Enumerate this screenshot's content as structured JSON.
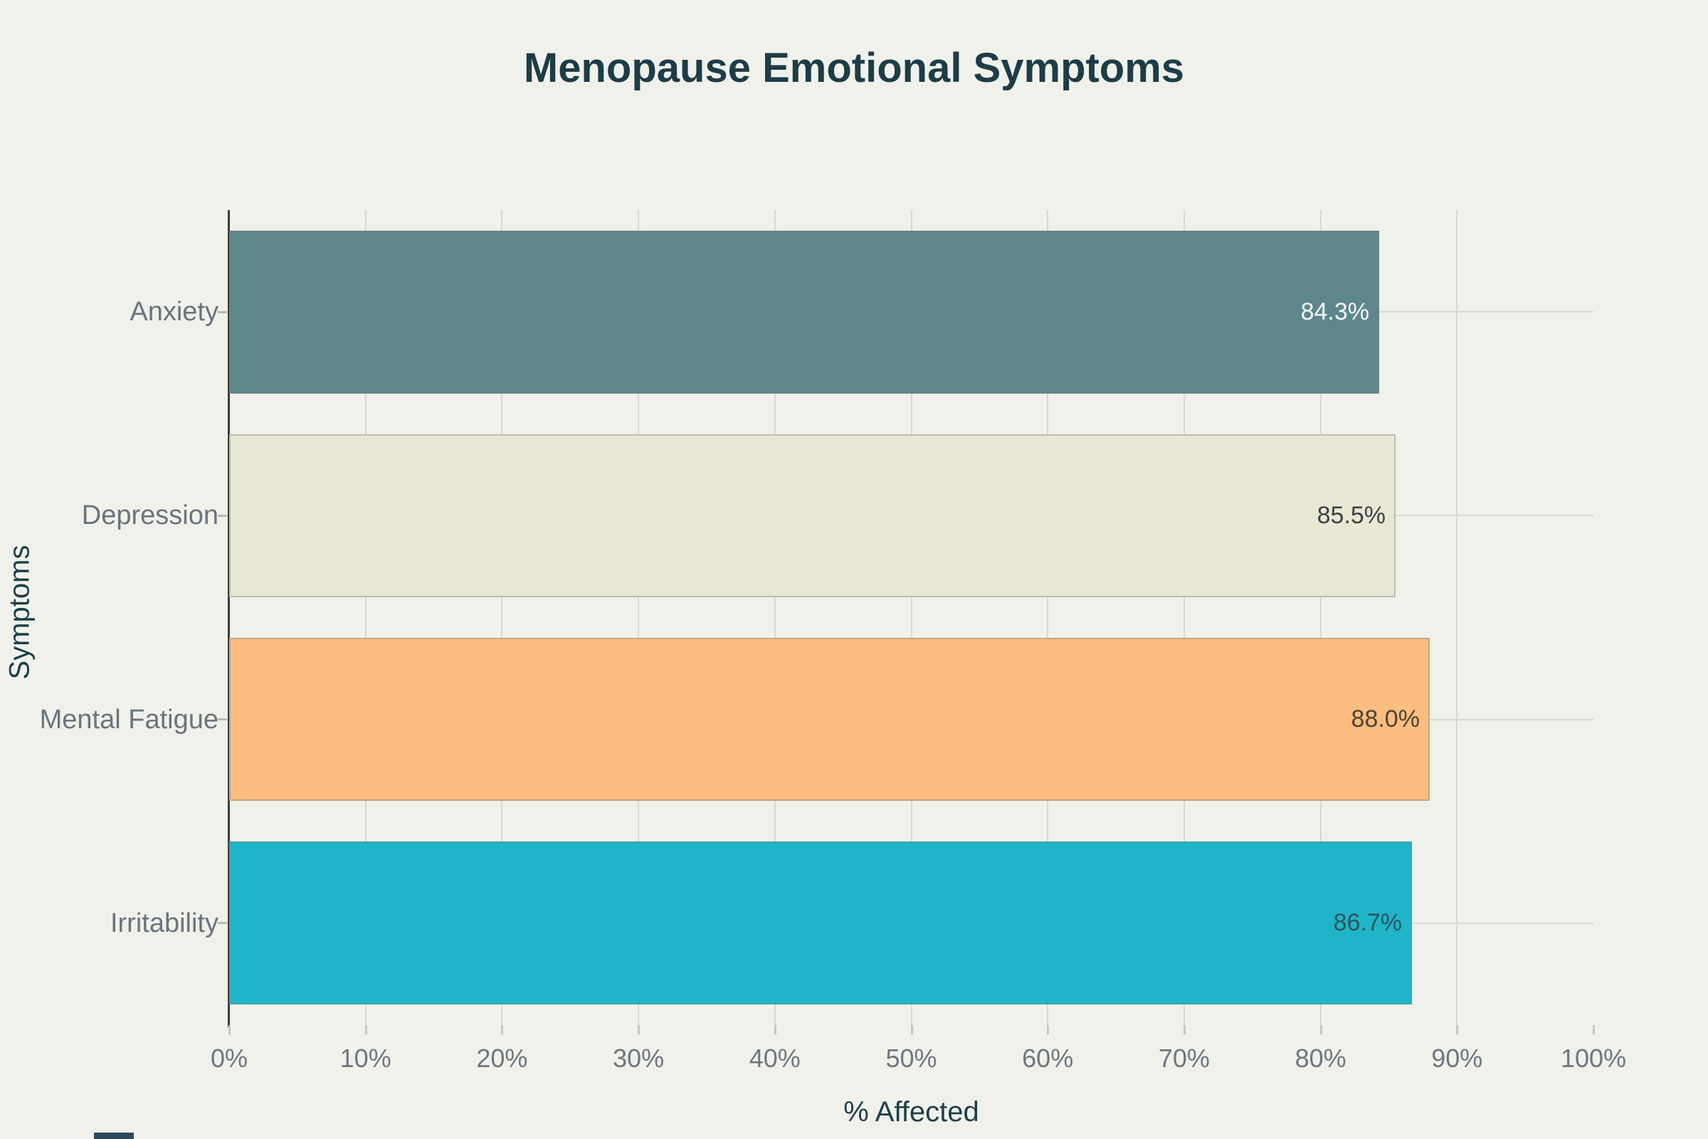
{
  "chart_data": {
    "type": "bar",
    "orientation": "horizontal",
    "title": "Menopause Emotional Symptoms",
    "xlabel": "% Affected",
    "ylabel": "Symptoms",
    "categories": [
      "Anxiety",
      "Depression",
      "Mental Fatigue",
      "Irritability"
    ],
    "values": [
      84.3,
      85.5,
      88.0,
      86.7
    ],
    "value_labels": [
      "84.3%",
      "85.5%",
      "88.0%",
      "86.7%"
    ],
    "bar_colors": [
      "#5d878d",
      "#e9e8d5",
      "#fcbd80",
      "#1fb5c9"
    ],
    "value_label_colors": [
      "#f4f6f6",
      "#3e4144",
      "#4c4335",
      "#2a545e"
    ],
    "xlim": [
      0,
      100
    ],
    "xtick_step": 10,
    "xticks": [
      "0%",
      "10%",
      "20%",
      "30%",
      "40%",
      "50%",
      "60%",
      "70%",
      "80%",
      "90%",
      "100%"
    ],
    "grid": true,
    "legend": false,
    "background": "#f1f1ec"
  }
}
